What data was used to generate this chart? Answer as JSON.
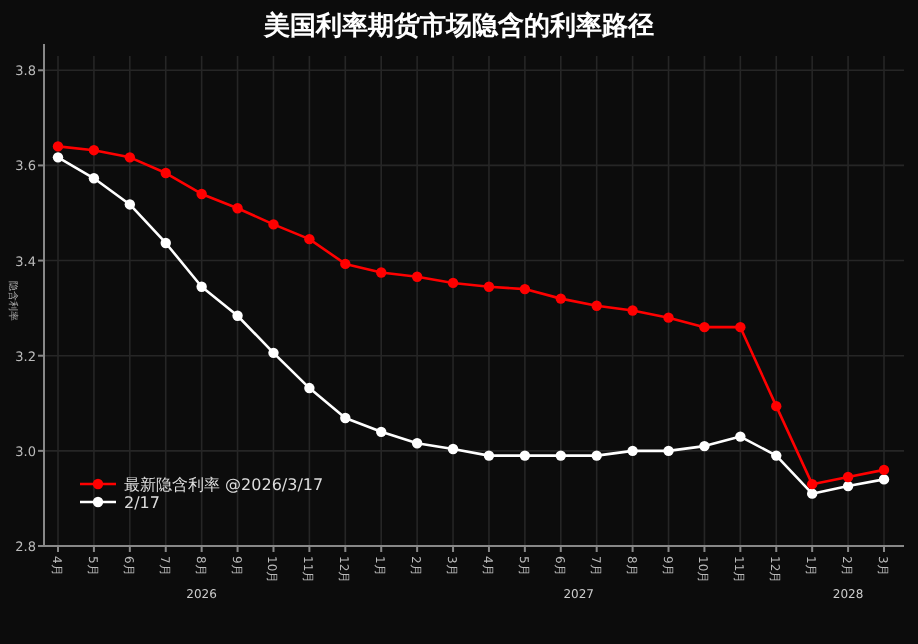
{
  "chart_data": {
    "type": "line",
    "title": "美国利率期货市场隐含的利率路径",
    "ylabel": "隐含利率",
    "categories": [
      "4月",
      "5月",
      "6月",
      "7月",
      "8月",
      "9月",
      "10月",
      "11月",
      "12月",
      "1月",
      "2月",
      "3月",
      "4月",
      "5月",
      "6月",
      "7月",
      "8月",
      "9月",
      "10月",
      "11月",
      "12月",
      "1月",
      "2月",
      "3月"
    ],
    "annotations": [
      "2026",
      "2027",
      "2028"
    ],
    "series": [
      {
        "name": "最新隐含利率 @2026/3/17",
        "color": "#ff0000",
        "values": [
          3.64,
          3.632,
          3.617,
          3.584,
          3.54,
          3.51,
          3.476,
          3.445,
          3.393,
          3.375,
          3.366,
          3.353,
          3.345,
          3.34,
          3.32,
          3.305,
          3.295,
          3.28,
          3.26,
          3.26,
          3.094,
          2.93,
          2.945,
          2.96
        ]
      },
      {
        "name": "2/17",
        "color": "#ffffff",
        "values": [
          3.617,
          3.573,
          3.518,
          3.437,
          3.345,
          3.284,
          3.206,
          3.132,
          3.069,
          3.04,
          3.016,
          3.004,
          2.99,
          2.99,
          2.99,
          2.99,
          3.0,
          3.0,
          3.01,
          3.03,
          2.99,
          2.91,
          2.926,
          2.94
        ]
      }
    ],
    "ylim": [
      2.8,
      3.83
    ],
    "yticks": [
      2.8,
      {
        "value": 3.0,
        "label": "3.0"
      },
      3.2,
      3.4,
      3.6,
      3.8
    ],
    "grid": true,
    "legend": "bottom left",
    "marker": "circle",
    "line_style": "solid"
  }
}
